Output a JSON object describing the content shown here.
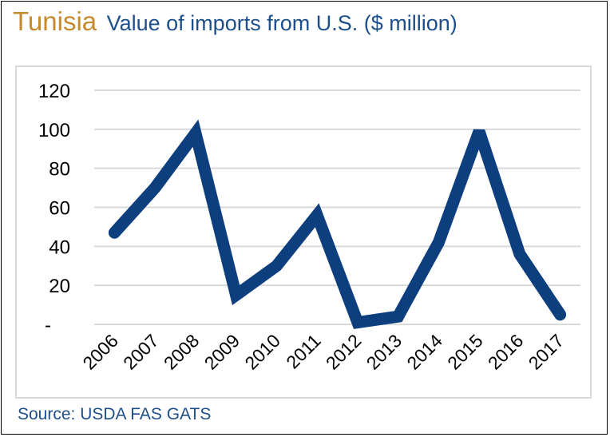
{
  "header": {
    "country": "Tunisia",
    "subtitle": "Value of imports from U.S. ($ million)"
  },
  "footer": {
    "source": "Source: USDA FAS GATS"
  },
  "colors": {
    "country_title": "#c58a2e",
    "series_line": "#0d3f7f",
    "subtitle_text": "#1d4f8b",
    "gridline": "#d9d9d9"
  },
  "chart_data": {
    "type": "line",
    "title": "Value of imports from U.S. ($ million)",
    "categories": [
      "2006",
      "2007",
      "2008",
      "2009",
      "2010",
      "2011",
      "2012",
      "2013",
      "2014",
      "2015",
      "2016",
      "2017"
    ],
    "series": [
      {
        "values": [
          47,
          70,
          98,
          15,
          30,
          56,
          1,
          4,
          42,
          99,
          36,
          5
        ]
      }
    ],
    "yticks": [
      "-",
      "20",
      "40",
      "60",
      "80",
      "100",
      "120"
    ],
    "ylim": [
      0,
      120
    ],
    "grid": true,
    "legend": "none"
  }
}
